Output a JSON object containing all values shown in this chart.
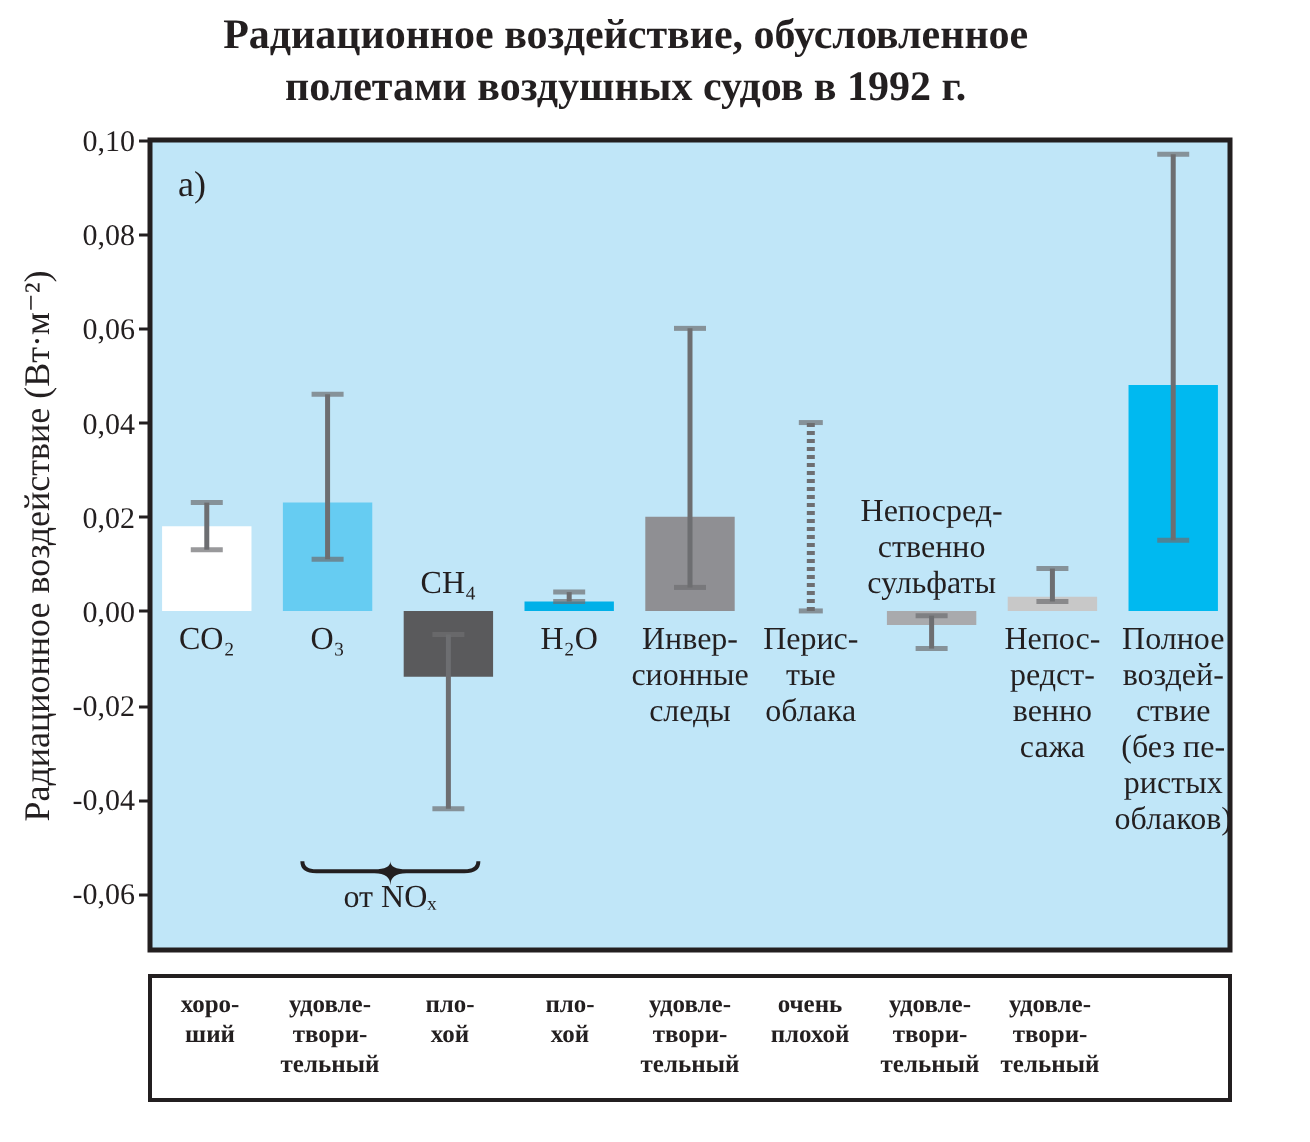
{
  "chart_data": {
    "type": "bar",
    "title": "Радиационное воздействие, обусловленное\nполетами воздушных судов в 1992 г.",
    "ylabel": "Радиационное воздействие (Вт·м⁻²)",
    "categories": [
      "CO₂",
      "O₃",
      "CH₄",
      "H₂O",
      "Инвер-\nсионные\nследы",
      "Перис-\nтые\nоблака",
      "Непосред-\nственно\nсульфаты",
      "Непос-\nредст-\nвенно\nсажа",
      "Полное\nвоздей-\nствие\n(без пе-\nристых\nоблаков)"
    ],
    "values": [
      0.018,
      0.023,
      -0.014,
      0.002,
      0.02,
      0,
      -0.003,
      0.003,
      0.048
    ],
    "colors": [
      "#ffffff",
      "#66ccf2",
      "#5a5a5c",
      "#00b0e8",
      "#8f8f93",
      "#6d6e71",
      "#a9aaad",
      "#c8c8c8",
      "#00b9f0"
    ],
    "errors": [
      [
        0.013,
        0.023
      ],
      [
        0.011,
        0.046
      ],
      [
        -0.042,
        -0.005
      ],
      [
        0.002,
        0.004
      ],
      [
        0.005,
        0.06
      ],
      [
        0,
        0.04
      ],
      [
        -0.008,
        -0.001
      ],
      [
        0.002,
        0.009
      ],
      [
        0.015,
        0.097
      ]
    ],
    "ylim": [
      -0.072,
      0.1
    ],
    "yticks": [
      {
        "value": -0.06,
        "label": "-0,06"
      },
      {
        "value": -0.04,
        "label": "-0,04"
      },
      {
        "value": -0.02,
        "label": "-0,02"
      },
      {
        "value": 0,
        "label": "0,00"
      },
      {
        "value": 0.02,
        "label": "0,02"
      },
      {
        "value": 0.04,
        "label": "0,04"
      },
      {
        "value": 0.06,
        "label": "0,06"
      },
      {
        "value": 0.08,
        "label": "0,08"
      },
      {
        "value": 0.1,
        "label": "0,10"
      }
    ],
    "grid": false,
    "legend": false,
    "annotations": [
      "a)",
      "от NOₓ",
      "хоро-\nший",
      "удовле-\nтвори-\nтельный",
      "пло-\nхой",
      "пло-\nхой",
      "удовле-\nтвори-\nтельный",
      "очень\nплохой",
      "удовле-\nтвори-\nтельный",
      "удовле-\nтвори-\nтельный"
    ]
  }
}
